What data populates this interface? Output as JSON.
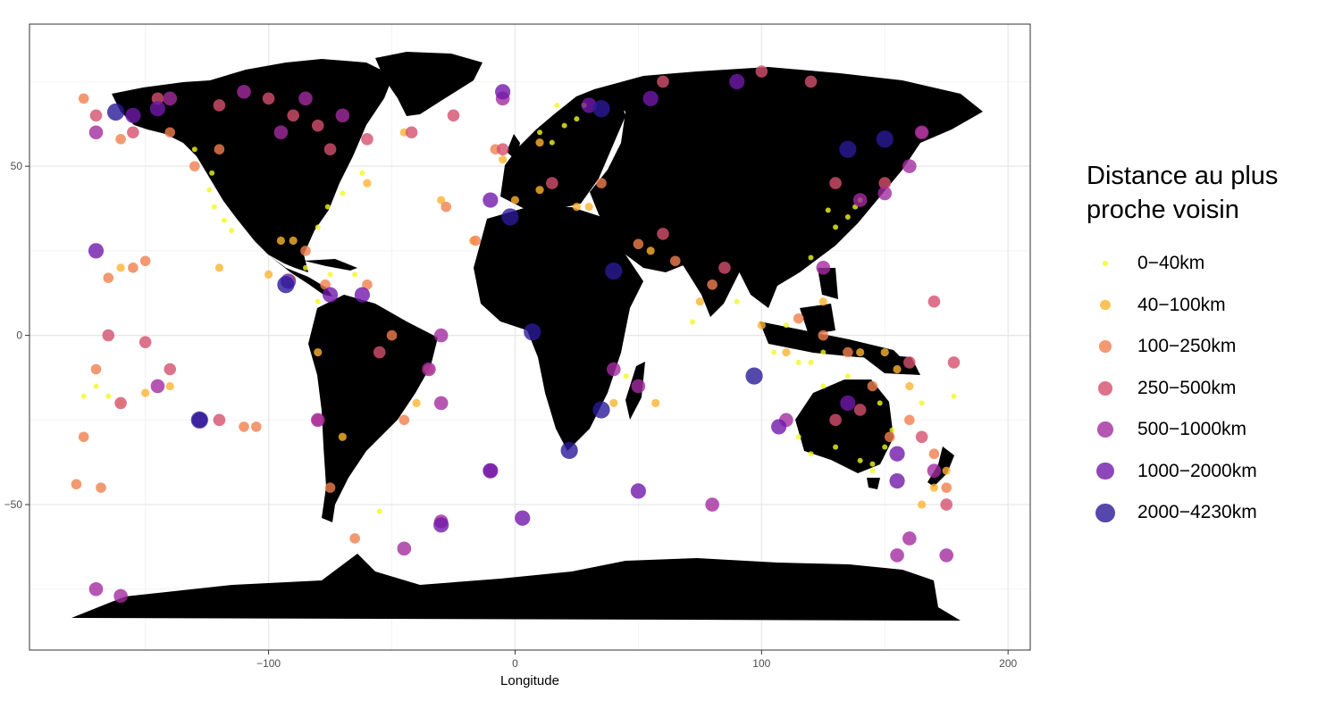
{
  "chart_data": {
    "type": "scatter",
    "title": "",
    "xlabel": "Longitude",
    "ylabel": "",
    "xlim": [
      -197,
      209
    ],
    "ylim": [
      -93,
      92
    ],
    "x_ticks": [
      -100,
      0,
      100,
      200
    ],
    "y_ticks": [
      -50,
      0,
      50
    ],
    "x_tick_labels": [
      "−100",
      "0",
      "100",
      "200"
    ],
    "y_tick_labels": [
      "−50",
      "0",
      "50"
    ],
    "grid": true,
    "background": "#ffffff",
    "panel_border": "#333333",
    "landmass_color": "#000000",
    "legend": {
      "title": "Distance au plus proche voisin",
      "position": "right",
      "entries": [
        {
          "label": "0−40km",
          "color": "#F0F921",
          "size": 3
        },
        {
          "label": "40−100km",
          "color": "#FDB32F",
          "size": 4.6
        },
        {
          "label": "100−250km",
          "color": "#F0804F",
          "size": 6
        },
        {
          "label": "250−500km",
          "color": "#D4506E",
          "size": 7
        },
        {
          "label": "500−1000km",
          "color": "#A32CA0",
          "size": 8.5
        },
        {
          "label": "1000−2000km",
          "color": "#7219AA",
          "size": 10
        },
        {
          "label": "2000−4230km",
          "color": "#2A1A99",
          "size": 11.5
        }
      ]
    },
    "series": [
      {
        "name": "0−40km",
        "points": [
          [
            20,
            62
          ],
          [
            17,
            68
          ],
          [
            25,
            64
          ],
          [
            10,
            60
          ],
          [
            28,
            68
          ],
          [
            15,
            57
          ],
          [
            -124,
            43
          ],
          [
            -123,
            48
          ],
          [
            -118,
            34
          ],
          [
            -115,
            31
          ],
          [
            -130,
            55
          ],
          [
            -122,
            38
          ],
          [
            -76,
            38
          ],
          [
            -80,
            32
          ],
          [
            -70,
            42
          ],
          [
            -85,
            20
          ],
          [
            -90,
            17
          ],
          [
            -75,
            18
          ],
          [
            -65,
            18
          ],
          [
            -80,
            10
          ],
          [
            -62,
            48
          ],
          [
            135,
            35
          ],
          [
            138,
            38
          ],
          [
            130,
            32
          ],
          [
            127,
            37
          ],
          [
            140,
            40
          ],
          [
            120,
            23
          ],
          [
            110,
            3
          ],
          [
            105,
            -5
          ],
          [
            115,
            -8
          ],
          [
            120,
            -8
          ],
          [
            125,
            -5
          ],
          [
            115,
            -30
          ],
          [
            120,
            -35
          ],
          [
            130,
            -33
          ],
          [
            140,
            -37
          ],
          [
            145,
            -38
          ],
          [
            150,
            -33
          ],
          [
            153,
            -28
          ],
          [
            148,
            -20
          ],
          [
            135,
            -12
          ],
          [
            125,
            -15
          ],
          [
            145,
            -40
          ],
          [
            90,
            10
          ],
          [
            -170,
            -15
          ],
          [
            -165,
            -18
          ],
          [
            -160,
            -20
          ],
          [
            -175,
            -18
          ],
          [
            72,
            4
          ],
          [
            -55,
            -52
          ],
          [
            45,
            -12
          ],
          [
            165,
            -20
          ],
          [
            178,
            -18
          ]
        ]
      },
      {
        "name": "40−100km",
        "points": [
          [
            -120,
            20
          ],
          [
            -100,
            18
          ],
          [
            -95,
            28
          ],
          [
            -90,
            28
          ],
          [
            -60,
            45
          ],
          [
            -45,
            60
          ],
          [
            -30,
            40
          ],
          [
            -17,
            28
          ],
          [
            0,
            40
          ],
          [
            10,
            43
          ],
          [
            25,
            38
          ],
          [
            30,
            38
          ],
          [
            55,
            25
          ],
          [
            75,
            10
          ],
          [
            100,
            3
          ],
          [
            110,
            -5
          ],
          [
            125,
            10
          ],
          [
            140,
            -5
          ],
          [
            150,
            -5
          ],
          [
            155,
            -10
          ],
          [
            160,
            -15
          ],
          [
            -5,
            52
          ],
          [
            10,
            57
          ],
          [
            -150,
            -17
          ],
          [
            -140,
            -15
          ],
          [
            -80,
            -5
          ],
          [
            -70,
            -30
          ],
          [
            -40,
            -20
          ],
          [
            40,
            -20
          ],
          [
            57,
            -20
          ],
          [
            170,
            -45
          ],
          [
            175,
            -40
          ],
          [
            165,
            -50
          ],
          [
            -160,
            20
          ]
        ]
      },
      {
        "name": "100−250km",
        "points": [
          [
            -175,
            70
          ],
          [
            -160,
            58
          ],
          [
            -140,
            60
          ],
          [
            -130,
            50
          ],
          [
            -120,
            55
          ],
          [
            -85,
            25
          ],
          [
            -77,
            15
          ],
          [
            -60,
            15
          ],
          [
            -50,
            0
          ],
          [
            -35,
            -10
          ],
          [
            -45,
            -25
          ],
          [
            -75,
            -45
          ],
          [
            -65,
            -60
          ],
          [
            -28,
            38
          ],
          [
            -16,
            28
          ],
          [
            -8,
            55
          ],
          [
            35,
            45
          ],
          [
            50,
            27
          ],
          [
            65,
            22
          ],
          [
            80,
            15
          ],
          [
            115,
            5
          ],
          [
            125,
            0
          ],
          [
            135,
            -5
          ],
          [
            145,
            -15
          ],
          [
            152,
            -30
          ],
          [
            160,
            -25
          ],
          [
            170,
            -35
          ],
          [
            175,
            -45
          ],
          [
            -110,
            -27
          ],
          [
            -105,
            -27
          ],
          [
            -170,
            -10
          ],
          [
            -175,
            -30
          ],
          [
            -178,
            -44
          ],
          [
            -168,
            -45
          ],
          [
            -150,
            22
          ],
          [
            -155,
            20
          ],
          [
            -165,
            17
          ]
        ]
      },
      {
        "name": "250−500km",
        "points": [
          [
            -155,
            60
          ],
          [
            -145,
            70
          ],
          [
            -120,
            68
          ],
          [
            -100,
            70
          ],
          [
            -90,
            65
          ],
          [
            -80,
            62
          ],
          [
            -75,
            55
          ],
          [
            -60,
            58
          ],
          [
            -42,
            60
          ],
          [
            -25,
            65
          ],
          [
            -170,
            65
          ],
          [
            -160,
            -20
          ],
          [
            -165,
            0
          ],
          [
            -120,
            -25
          ],
          [
            -80,
            -25
          ],
          [
            -55,
            -5
          ],
          [
            -5,
            55
          ],
          [
            15,
            45
          ],
          [
            60,
            30
          ],
          [
            85,
            20
          ],
          [
            130,
            45
          ],
          [
            150,
            45
          ],
          [
            165,
            60
          ],
          [
            120,
            75
          ],
          [
            100,
            78
          ],
          [
            60,
            75
          ],
          [
            130,
            -25
          ],
          [
            140,
            -22
          ],
          [
            160,
            -8
          ],
          [
            165,
            -30
          ],
          [
            175,
            -50
          ],
          [
            178,
            -8
          ],
          [
            170,
            10
          ],
          [
            -150,
            -2
          ],
          [
            -140,
            -10
          ]
        ]
      },
      {
        "name": "500−1000km",
        "points": [
          [
            -140,
            70
          ],
          [
            -110,
            72
          ],
          [
            -85,
            70
          ],
          [
            -70,
            65
          ],
          [
            -95,
            60
          ],
          [
            -170,
            60
          ],
          [
            -145,
            -15
          ],
          [
            -30,
            0
          ],
          [
            -35,
            -10
          ],
          [
            -30,
            -20
          ],
          [
            -80,
            -25
          ],
          [
            50,
            -15
          ],
          [
            40,
            -10
          ],
          [
            80,
            -50
          ],
          [
            140,
            40
          ],
          [
            150,
            42
          ],
          [
            160,
            50
          ],
          [
            165,
            60
          ],
          [
            170,
            -40
          ],
          [
            155,
            -65
          ],
          [
            175,
            -65
          ],
          [
            160,
            -60
          ],
          [
            -170,
            -75
          ],
          [
            -160,
            -77
          ],
          [
            -45,
            -63
          ],
          [
            -30,
            -55
          ],
          [
            -10,
            -40
          ],
          [
            -5,
            70
          ],
          [
            125,
            20
          ],
          [
            110,
            -25
          ]
        ]
      },
      {
        "name": "1000−2000km",
        "points": [
          [
            -170,
            25
          ],
          [
            -128,
            -25
          ],
          [
            -10,
            -40
          ],
          [
            3,
            -54
          ],
          [
            50,
            -46
          ],
          [
            -30,
            -56
          ],
          [
            -92,
            16
          ],
          [
            -155,
            65
          ],
          [
            -145,
            67
          ],
          [
            -5,
            72
          ],
          [
            30,
            68
          ],
          [
            55,
            70
          ],
          [
            90,
            75
          ],
          [
            -10,
            40
          ],
          [
            155,
            -35
          ],
          [
            155,
            -43
          ],
          [
            -75,
            12
          ],
          [
            -62,
            12
          ],
          [
            107,
            -27
          ],
          [
            135,
            -20
          ]
        ]
      },
      {
        "name": "2000−4230km",
        "points": [
          [
            -162,
            66
          ],
          [
            7,
            1
          ],
          [
            40,
            19
          ],
          [
            97,
            -12
          ],
          [
            -93,
            15
          ],
          [
            22,
            -34
          ],
          [
            -128,
            -25
          ],
          [
            150,
            58
          ],
          [
            135,
            55
          ],
          [
            -2,
            35
          ],
          [
            35,
            -22
          ],
          [
            35,
            67
          ]
        ]
      }
    ],
    "series_render": [
      {
        "radius": 3.0,
        "opacity": 0.8
      },
      {
        "radius": 4.6,
        "opacity": 0.8
      },
      {
        "radius": 5.8,
        "opacity": 0.8
      },
      {
        "radius": 6.8,
        "opacity": 0.8
      },
      {
        "radius": 7.8,
        "opacity": 0.8
      },
      {
        "radius": 8.6,
        "opacity": 0.8
      },
      {
        "radius": 9.6,
        "opacity": 0.8
      }
    ]
  }
}
